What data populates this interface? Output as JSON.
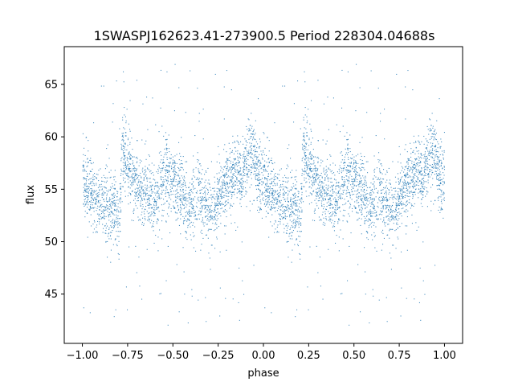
{
  "chart_data": {
    "type": "scatter",
    "title": "1SWASPJ162623.41-273900.5 Period 228304.04688s",
    "xlabel": "phase",
    "ylabel": "flux",
    "xlim": [
      -1.1,
      1.1
    ],
    "ylim": [
      40.3,
      68.6
    ],
    "x_ticks": [
      -1.0,
      -0.75,
      -0.5,
      -0.25,
      0.0,
      0.25,
      0.5,
      0.75,
      1.0
    ],
    "x_tick_labels": [
      "−1.00",
      "−0.75",
      "−0.50",
      "−0.25",
      "0.00",
      "0.25",
      "0.50",
      "0.75",
      "1.00"
    ],
    "y_ticks": [
      45,
      50,
      55,
      60,
      65
    ],
    "y_tick_labels": [
      "45",
      "50",
      "55",
      "60",
      "65"
    ],
    "grid": false,
    "legend": "none",
    "point_color": "#1f77b4",
    "series": [
      {
        "name": "",
        "profile_phase": [
          0.0,
          0.03,
          0.06,
          0.09,
          0.12,
          0.15,
          0.18,
          0.2,
          0.22,
          0.25,
          0.28,
          0.31,
          0.34,
          0.37,
          0.4,
          0.43,
          0.46,
          0.49,
          0.52,
          0.55,
          0.58,
          0.61,
          0.64,
          0.67,
          0.7,
          0.73,
          0.76,
          0.79,
          0.82,
          0.85,
          0.88,
          0.91,
          0.94,
          0.97,
          1.0
        ],
        "profile_flux": [
          56.0,
          55.0,
          54.5,
          54.0,
          53.5,
          53.0,
          53.5,
          51.0,
          59.0,
          57.0,
          56.0,
          55.0,
          54.5,
          54.0,
          53.5,
          55.5,
          56.5,
          56.0,
          55.0,
          54.5,
          53.0,
          53.5,
          55.0,
          54.0,
          53.0,
          53.5,
          54.5,
          55.5,
          56.0,
          57.0,
          56.0,
          58.0,
          59.0,
          56.0,
          56.0
        ],
        "scatter_spread": 1.6,
        "outlier_range": [
          42,
          67
        ]
      }
    ]
  }
}
